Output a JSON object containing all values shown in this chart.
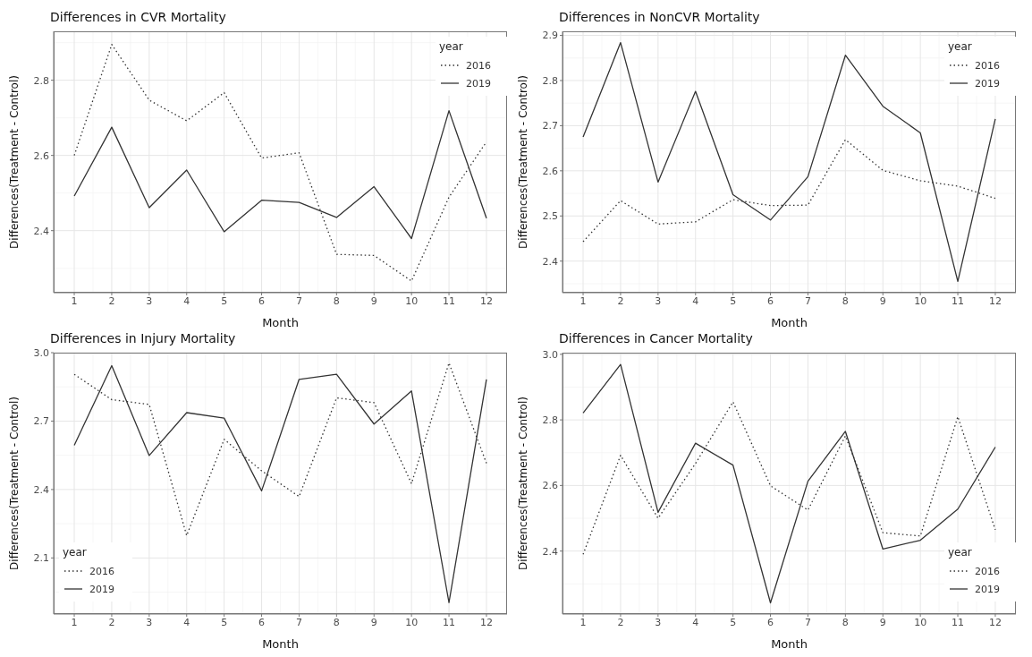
{
  "chart_data": [
    {
      "type": "line",
      "title": "Differences in CVR Mortality",
      "xlabel": "Month",
      "ylabel": "Differences(Treatment - Control)",
      "legend_title": "year",
      "legend": "top right",
      "grid": true,
      "x": [
        1,
        2,
        3,
        4,
        5,
        6,
        7,
        8,
        9,
        10,
        11,
        12
      ],
      "xlim": [
        0.45,
        12.55
      ],
      "xticks": [
        1,
        2,
        3,
        4,
        5,
        6,
        7,
        8,
        9,
        10,
        11,
        12
      ],
      "ylim": [
        2.235,
        2.93
      ],
      "yticks": [
        2.4,
        2.6,
        2.8
      ],
      "series": [
        {
          "name": "2016",
          "color": "#333333",
          "line_style": "dotted",
          "values": [
            2.6,
            2.895,
            2.747,
            2.692,
            2.767,
            2.593,
            2.607,
            2.337,
            2.334,
            2.266,
            2.489,
            2.636
          ]
        },
        {
          "name": "2019",
          "color": "#333333",
          "line_style": "solid",
          "values": [
            2.492,
            2.675,
            2.461,
            2.561,
            2.397,
            2.481,
            2.475,
            2.435,
            2.517,
            2.379,
            2.719,
            2.433
          ]
        }
      ]
    },
    {
      "type": "line",
      "title": "Differences in NonCVR Mortality",
      "xlabel": "Month",
      "ylabel": "Differences(Treatment - Control)",
      "legend_title": "year",
      "legend": "top right",
      "grid": true,
      "x": [
        1,
        2,
        3,
        4,
        5,
        6,
        7,
        8,
        9,
        10,
        11,
        12
      ],
      "xlim": [
        0.45,
        12.55
      ],
      "xticks": [
        1,
        2,
        3,
        4,
        5,
        6,
        7,
        8,
        9,
        10,
        11,
        12
      ],
      "ylim": [
        2.33,
        2.909
      ],
      "yticks": [
        2.4,
        2.5,
        2.6,
        2.7,
        2.8,
        2.9
      ],
      "series": [
        {
          "name": "2016",
          "color": "#333333",
          "line_style": "dotted",
          "values": [
            2.443,
            2.534,
            2.482,
            2.487,
            2.536,
            2.523,
            2.524,
            2.669,
            2.601,
            2.578,
            2.566,
            2.539
          ]
        },
        {
          "name": "2019",
          "color": "#333333",
          "line_style": "solid",
          "values": [
            2.675,
            2.884,
            2.575,
            2.776,
            2.547,
            2.491,
            2.587,
            2.856,
            2.743,
            2.684,
            2.355,
            2.715
          ]
        }
      ]
    },
    {
      "type": "line",
      "title": "Differences in Injury Mortality",
      "xlabel": "Month",
      "ylabel": "Differences(Treatment - Control)",
      "legend_title": "year",
      "legend": "bottom left",
      "grid": true,
      "x": [
        1,
        2,
        3,
        4,
        5,
        6,
        7,
        8,
        9,
        10,
        11,
        12
      ],
      "xlim": [
        0.45,
        12.55
      ],
      "xticks": [
        1,
        2,
        3,
        4,
        5,
        6,
        7,
        8,
        9,
        10,
        11,
        12
      ],
      "ylim": [
        1.854,
        3.0
      ],
      "yticks": [
        2.1,
        2.4,
        2.7,
        {
          "value": 3.0,
          "label": "3.0"
        }
      ],
      "series": [
        {
          "name": "2016",
          "color": "#333333",
          "line_style": "dotted",
          "values": [
            2.905,
            2.794,
            2.773,
            2.198,
            2.62,
            2.482,
            2.369,
            2.802,
            2.781,
            2.426,
            2.955,
            2.515
          ]
        },
        {
          "name": "2019",
          "color": "#333333",
          "line_style": "solid",
          "values": [
            2.594,
            2.943,
            2.549,
            2.737,
            2.713,
            2.394,
            2.883,
            2.905,
            2.687,
            2.832,
            1.904,
            2.883
          ]
        }
      ]
    },
    {
      "type": "line",
      "title": "Differences in Cancer Mortality",
      "xlabel": "Month",
      "ylabel": "Differences(Treatment - Control)",
      "legend_title": "year",
      "legend": "bottom right",
      "grid": true,
      "x": [
        1,
        2,
        3,
        4,
        5,
        6,
        7,
        8,
        9,
        10,
        11,
        12
      ],
      "xlim": [
        0.45,
        12.55
      ],
      "xticks": [
        1,
        2,
        3,
        4,
        5,
        6,
        7,
        8,
        9,
        10,
        11,
        12
      ],
      "ylim": [
        2.208,
        3.005
      ],
      "yticks": [
        2.4,
        2.6,
        2.8,
        {
          "value": 3.0,
          "label": "3.0"
        }
      ],
      "series": [
        {
          "name": "2016",
          "color": "#333333",
          "line_style": "dotted",
          "values": [
            2.39,
            2.692,
            2.5,
            2.667,
            2.855,
            2.599,
            2.525,
            2.751,
            2.456,
            2.446,
            2.81,
            2.465
          ]
        },
        {
          "name": "2019",
          "color": "#333333",
          "line_style": "solid",
          "values": [
            2.821,
            2.969,
            2.518,
            2.729,
            2.662,
            2.242,
            2.613,
            2.765,
            2.406,
            2.433,
            2.528,
            2.717
          ]
        }
      ]
    }
  ]
}
